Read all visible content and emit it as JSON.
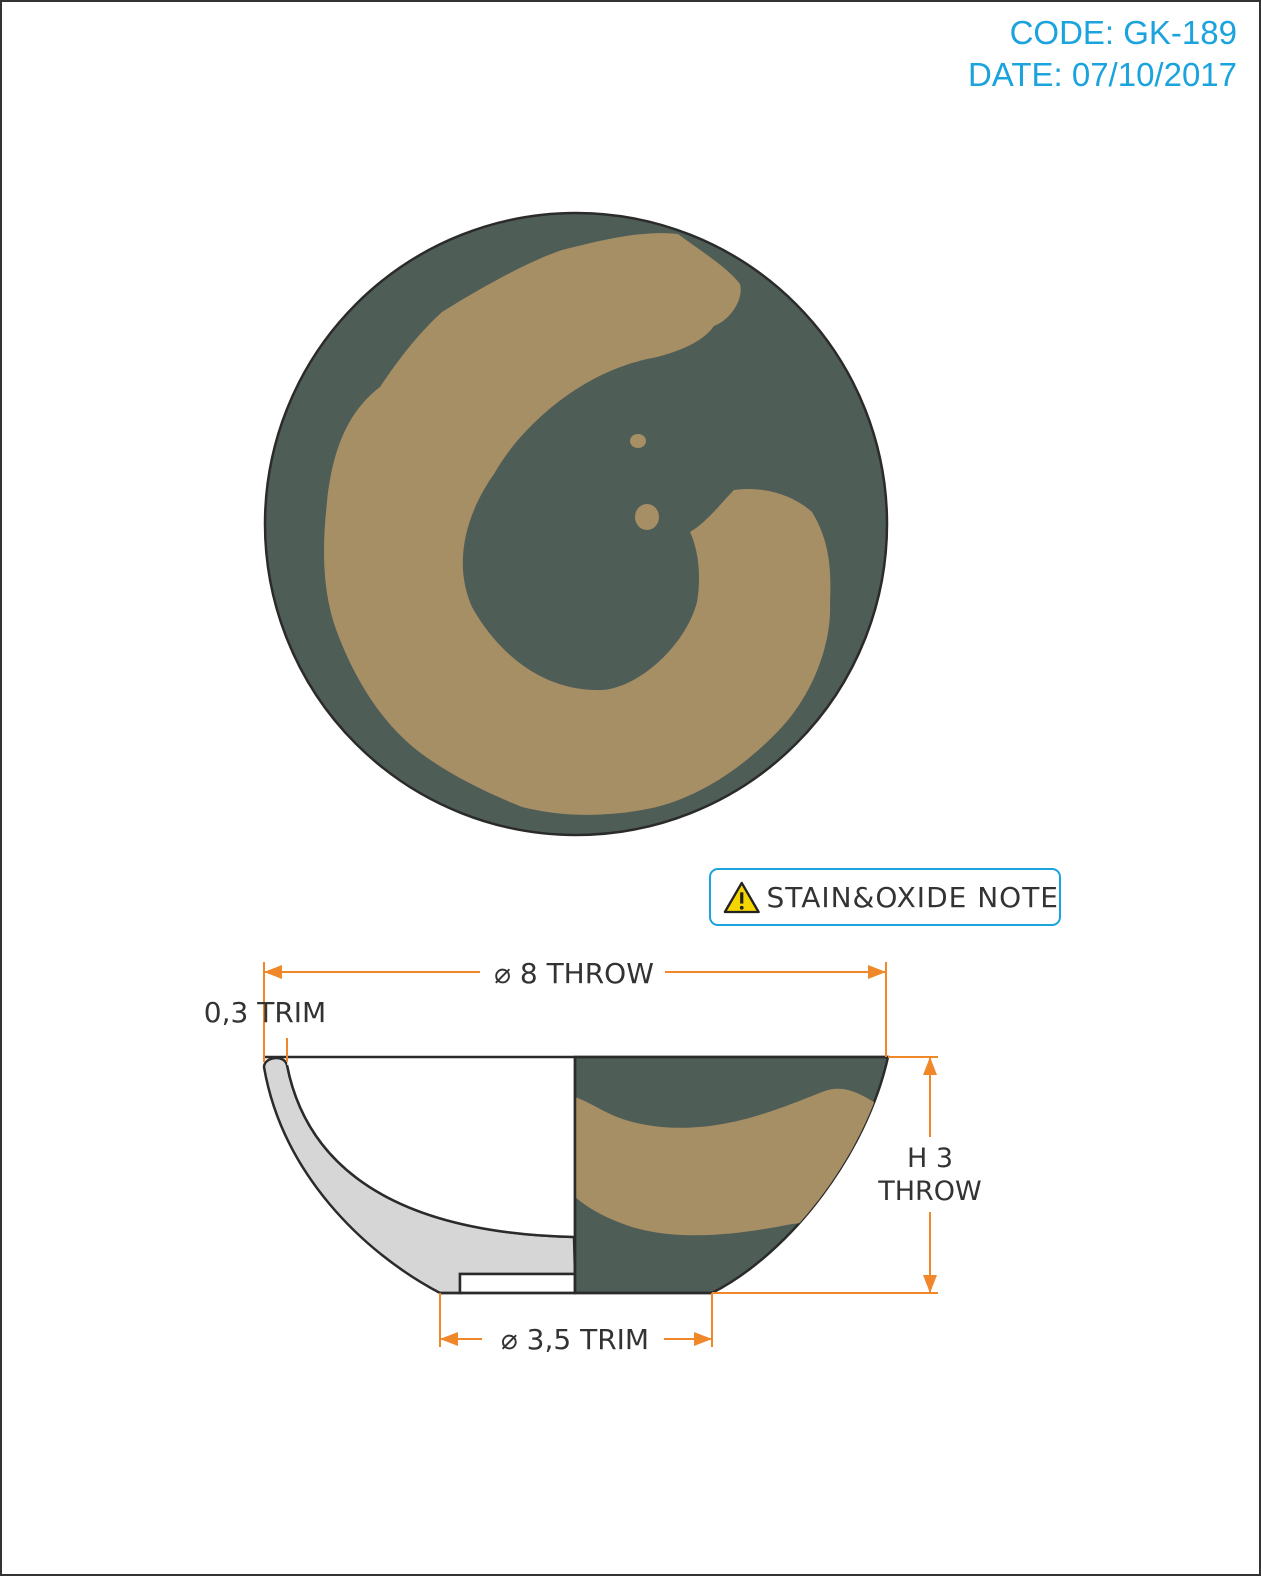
{
  "header": {
    "code": "CODE: GK-189",
    "date": "DATE: 07/10/2017"
  },
  "note": {
    "label": "STAIN&OXIDE NOTE",
    "icon": "warning-triangle-icon"
  },
  "dimensions": {
    "diameter_top": "⌀ 8 THROW",
    "rim_trim": "0,3 TRIM",
    "height_line1": "H 3",
    "height_line2": "THROW",
    "diameter_base": "⌀ 3,5 TRIM"
  },
  "colors": {
    "glaze_dark": "#4f5d57",
    "glaze_tan": "#a68e65",
    "section_fill": "#d6d6d6",
    "dimension_line": "#f0882a",
    "header_text": "#1aa3dc",
    "warning_yellow": "#f4d500"
  }
}
